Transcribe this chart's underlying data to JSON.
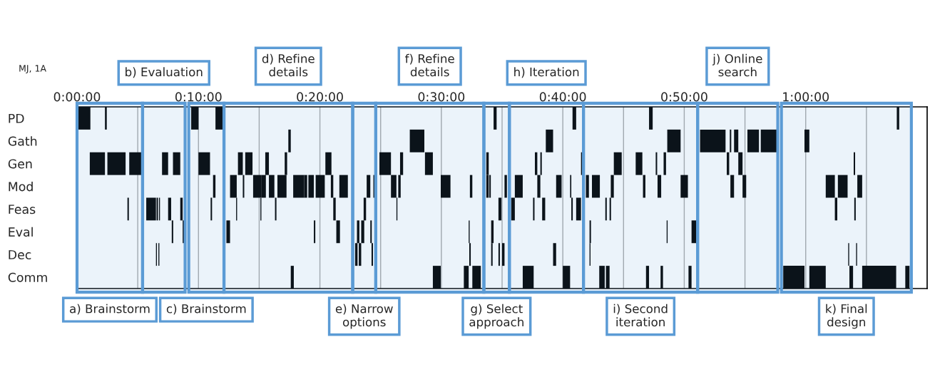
{
  "chart_data": {
    "type": "bar",
    "orientation": "horizontal",
    "categories": [
      "PD",
      "Gath",
      "Gen",
      "Mod",
      "Feas",
      "Eval",
      "Dec",
      "Comm"
    ],
    "xlim": [
      0,
      70
    ],
    "xticks": [
      {
        "value": 0,
        "label": "0:00:00"
      },
      {
        "value": 5,
        "label": null
      },
      {
        "value": 10,
        "label": "0:10:00"
      },
      {
        "value": 15,
        "label": null
      },
      {
        "value": 20,
        "label": "0:20:00"
      },
      {
        "value": 25,
        "label": null
      },
      {
        "value": 30,
        "label": "0:30:00"
      },
      {
        "value": 35,
        "label": null
      },
      {
        "value": 40,
        "label": "0:40:00"
      },
      {
        "value": 45,
        "label": null
      },
      {
        "value": 50,
        "label": "0:50:00"
      },
      {
        "value": 55,
        "label": null
      },
      {
        "value": 60,
        "label": "1:00:00"
      },
      {
        "value": 65,
        "label": null
      }
    ],
    "grid": "x",
    "annotations": [
      "MJ, 1A"
    ],
    "bands": [
      {
        "axis": "x",
        "from": 0,
        "to": 5.4,
        "label": "a) Brainstorm",
        "color": "#5b9bd5"
      },
      {
        "axis": "x",
        "from": 5.4,
        "to": 8.9,
        "label": "b) Evaluation",
        "color": "#5b9bd5"
      },
      {
        "axis": "x",
        "from": 9.2,
        "to": 12.1,
        "label": "c) Brainstorm",
        "color": "#5b9bd5"
      },
      {
        "axis": "x",
        "from": 12.1,
        "to": 22.7,
        "label": "d) Refine\ndetails",
        "color": "#5b9bd5"
      },
      {
        "axis": "x",
        "from": 22.7,
        "to": 24.6,
        "label": "e) Narrow\noptions",
        "color": "#5b9bd5"
      },
      {
        "axis": "x",
        "from": 24.6,
        "to": 33.5,
        "label": "f) Refine\ndetails",
        "color": "#5b9bd5"
      },
      {
        "axis": "x",
        "from": 33.5,
        "to": 35.6,
        "label": "g) Select\napproach",
        "color": "#5b9bd5"
      },
      {
        "axis": "x",
        "from": 35.6,
        "to": 41.7,
        "label": "h) Iteration",
        "color": "#5b9bd5"
      },
      {
        "axis": "x",
        "from": 41.7,
        "to": 51.1,
        "label": "i) Second\niteration",
        "color": "#5b9bd5"
      },
      {
        "axis": "x",
        "from": 51.1,
        "to": 57.7,
        "label": "j) Online\nsearch",
        "color": "#5b9bd5"
      },
      {
        "axis": "x",
        "from": 58.0,
        "to": 68.7,
        "label": "k) Final\ndesign",
        "color": "#5b9bd5"
      }
    ],
    "series": [
      {
        "color": "#000000",
        "base": [
          0.1,
          17.4,
          1.05,
          11.2,
          4.15,
          7.8,
          6.5,
          17.6
        ],
        "values": [
          1.0,
          0.2,
          1.25,
          0.2,
          0.12,
          0.12,
          0.08,
          0.25
        ]
      },
      {
        "color": "#000000",
        "base": [
          2.3,
          27.4,
          2.5,
          12.6,
          5.7,
          8.7,
          6.7,
          29.3
        ],
        "values": [
          0.15,
          1.2,
          1.5,
          0.55,
          0.8,
          0.12,
          0.08,
          0.65
        ]
      },
      {
        "color": "#000000",
        "base": [
          9.4,
          38.6,
          4.3,
          13.65,
          6.55,
          12.3,
          22.9,
          31.85
        ],
        "values": [
          0.6,
          0.6,
          1.05,
          0.12,
          0.12,
          0.3,
          0.2,
          0.4
        ]
      },
      {
        "color": "#000000",
        "base": [
          11.4,
          48.6,
          7.0,
          14.5,
          6.75,
          19.5,
          23.2,
          32.55
        ],
        "values": [
          0.6,
          1.1,
          0.5,
          0.7,
          0.08,
          0.12,
          0.2,
          0.7
        ]
      },
      {
        "color": "#000000",
        "base": [
          34.3,
          51.3,
          7.9,
          15.2,
          7.5,
          21.35,
          24.25,
          36.7
        ],
        "values": [
          0.25,
          2.1,
          0.6,
          0.35,
          0.25,
          0.3,
          0.12,
          0.9
        ]
      },
      {
        "color": "#000000",
        "base": [
          40.8,
          53.75,
          10.0,
          15.8,
          8.5,
          23.05,
          32.3,
          40.0
        ],
        "values": [
          0.3,
          0.12,
          0.95,
          0.45,
          0.2,
          0.2,
          0.12,
          0.6
        ]
      },
      {
        "color": "#000000",
        "base": [
          47.1,
          54.1,
          13.25,
          16.5,
          11.0,
          23.4,
          34.1,
          43.0
        ],
        "values": [
          0.3,
          0.35,
          0.4,
          0.75,
          0.12,
          0.25,
          0.12,
          0.45
        ]
      },
      {
        "color": "#000000",
        "base": [
          67.5,
          55.2,
          13.85,
          17.8,
          13.1,
          24.15,
          34.7,
          43.55
        ],
        "values": [
          0.2,
          0.95,
          0.6,
          0.9,
          0.08,
          0.12,
          0.12,
          0.3
        ]
      },
      {
        "color": "#000000",
        "base": [
          null,
          56.3,
          15.5,
          18.7,
          15.1,
          32.25,
          35.0,
          46.85
        ],
        "values": [
          null,
          1.45,
          0.3,
          0.25,
          0.08,
          0.08,
          0.2,
          0.25
        ]
      },
      {
        "color": "#000000",
        "base": [
          null,
          59.9,
          17.1,
          19.05,
          16.3,
          34.1,
          39.2,
          48.05
        ],
        "values": [
          null,
          0.4,
          0.2,
          0.45,
          0.12,
          0.2,
          0.25,
          0.2
        ]
      },
      {
        "color": "#000000",
        "base": [
          null,
          null,
          20.45,
          19.65,
          21.1,
          42.2,
          42.2,
          50.35
        ],
        "values": [
          null,
          null,
          0.5,
          0.75,
          0.2,
          0.12,
          0.08,
          0.25
        ]
      },
      {
        "color": "#000000",
        "base": [
          null,
          null,
          24.9,
          20.9,
          23.6,
          48.55,
          63.5,
          58.15
        ],
        "values": [
          null,
          null,
          0.95,
          0.2,
          0.2,
          0.08,
          0.08,
          1.75
        ]
      },
      {
        "color": "#000000",
        "base": [
          null,
          null,
          26.6,
          21.6,
          26.3,
          50.6,
          64.15,
          60.3
        ],
        "values": [
          null,
          null,
          0.25,
          0.7,
          0.08,
          0.4,
          0.08,
          1.35
        ]
      },
      {
        "color": "#000000",
        "base": [
          null,
          null,
          28.65,
          23.85,
          34.7,
          null,
          null,
          63.6
        ],
        "values": [
          null,
          null,
          0.65,
          0.3,
          0.25,
          null,
          null,
          0.3
        ]
      },
      {
        "color": "#000000",
        "base": [
          null,
          null,
          33.7,
          24.4,
          35.75,
          null,
          null,
          64.65
        ],
        "values": [
          null,
          null,
          0.2,
          0.12,
          0.3,
          null,
          null,
          2.8
        ]
      },
      {
        "color": "#000000",
        "base": [
          null,
          null,
          37.7,
          25.85,
          37.55,
          null,
          null,
          68.2
        ],
        "values": [
          null,
          null,
          0.2,
          0.45,
          0.12,
          null,
          null,
          0.35
        ]
      },
      {
        "color": "#000000",
        "base": [
          null,
          null,
          38.15,
          26.45,
          38.3,
          null,
          null,
          null
        ],
        "values": [
          null,
          null,
          0.12,
          0.2,
          0.25,
          null,
          null,
          null
        ]
      },
      {
        "color": "#000000",
        "base": [
          null,
          null,
          41.5,
          29.95,
          40.7,
          null,
          null,
          null
        ],
        "values": [
          null,
          null,
          0.1,
          0.8,
          0.12,
          null,
          null,
          null
        ]
      },
      {
        "color": "#000000",
        "base": [
          null,
          null,
          44.2,
          32.35,
          41.1,
          null,
          null,
          null
        ],
        "values": [
          null,
          null,
          0.65,
          0.2,
          0.4,
          null,
          null,
          null
        ]
      },
      {
        "color": "#000000",
        "base": [
          null,
          null,
          46.0,
          33.7,
          43.5,
          null,
          null,
          null
        ],
        "values": [
          null,
          null,
          0.55,
          0.2,
          0.12,
          null,
          null,
          null
        ]
      },
      {
        "color": "#000000",
        "base": [
          null,
          null,
          47.65,
          33.95,
          43.85,
          null,
          null,
          null
        ],
        "values": [
          null,
          null,
          0.12,
          0.12,
          0.12,
          null,
          null,
          null
        ]
      },
      {
        "color": "#000000",
        "base": [
          null,
          null,
          48.3,
          35.2,
          62.4,
          null,
          null,
          null
        ],
        "values": [
          null,
          null,
          0.2,
          0.2,
          0.2,
          null,
          null,
          null
        ]
      },
      {
        "color": "#000000",
        "base": [
          null,
          null,
          53.5,
          36.05,
          64.0,
          null,
          null,
          null
        ],
        "values": [
          null,
          null,
          0.2,
          0.65,
          0.12,
          null,
          null,
          null
        ]
      },
      {
        "color": "#000000",
        "base": [
          null,
          null,
          54.45,
          37.9,
          null,
          null,
          null,
          null
        ],
        "values": [
          null,
          null,
          0.35,
          0.25,
          null,
          null,
          null,
          null
        ]
      },
      {
        "color": "#000000",
        "base": [
          null,
          null,
          63.95,
          39.45,
          null,
          null,
          null,
          null
        ],
        "values": [
          null,
          null,
          0.12,
          0.45,
          null,
          null,
          null,
          null
        ]
      },
      {
        "color": "#000000",
        "base": [
          null,
          null,
          null,
          40.6,
          null,
          null,
          null,
          null
        ],
        "values": [
          null,
          null,
          null,
          0.1,
          null,
          null,
          null,
          null
        ]
      },
      {
        "color": "#000000",
        "base": [
          null,
          null,
          null,
          41.9,
          null,
          null,
          null,
          null
        ],
        "values": [
          null,
          null,
          null,
          0.25,
          null,
          null,
          null,
          null
        ]
      },
      {
        "color": "#000000",
        "base": [
          null,
          null,
          null,
          42.4,
          null,
          null,
          null,
          null
        ],
        "values": [
          null,
          null,
          null,
          0.65,
          null,
          null,
          null,
          null
        ]
      },
      {
        "color": "#000000",
        "base": [
          null,
          null,
          null,
          43.95,
          null,
          null,
          null,
          null
        ],
        "values": [
          null,
          null,
          null,
          0.25,
          null,
          null,
          null,
          null
        ]
      },
      {
        "color": "#000000",
        "base": [
          null,
          null,
          null,
          46.6,
          null,
          null,
          null,
          null
        ],
        "values": [
          null,
          null,
          null,
          0.2,
          null,
          null,
          null,
          null
        ]
      },
      {
        "color": "#000000",
        "base": [
          null,
          null,
          null,
          47.8,
          null,
          null,
          null,
          null
        ],
        "values": [
          null,
          null,
          null,
          0.3,
          null,
          null,
          null,
          null
        ]
      },
      {
        "color": "#000000",
        "base": [
          null,
          null,
          null,
          49.7,
          null,
          null,
          null,
          null
        ],
        "values": [
          null,
          null,
          null,
          0.6,
          null,
          null,
          null,
          null
        ]
      },
      {
        "color": "#000000",
        "base": [
          null,
          null,
          null,
          53.8,
          null,
          null,
          null,
          null
        ],
        "values": [
          null,
          null,
          null,
          0.3,
          null,
          null,
          null,
          null
        ]
      },
      {
        "color": "#000000",
        "base": [
          null,
          null,
          null,
          54.8,
          null,
          null,
          null,
          null
        ],
        "values": [
          null,
          null,
          null,
          0.3,
          null,
          null,
          null,
          null
        ]
      },
      {
        "color": "#000000",
        "base": [
          null,
          null,
          null,
          61.65,
          null,
          null,
          null,
          null
        ],
        "values": [
          null,
          null,
          null,
          0.75,
          null,
          null,
          null,
          null
        ]
      },
      {
        "color": "#000000",
        "base": [
          null,
          null,
          null,
          62.65,
          null,
          null,
          null,
          null
        ],
        "values": [
          null,
          null,
          null,
          0.8,
          null,
          null,
          null,
          null
        ]
      },
      {
        "color": "#000000",
        "base": [
          null,
          null,
          null,
          64.25,
          null,
          null,
          null,
          null
        ],
        "values": [
          null,
          null,
          null,
          0.4,
          null,
          null,
          null,
          null
        ]
      }
    ]
  }
}
